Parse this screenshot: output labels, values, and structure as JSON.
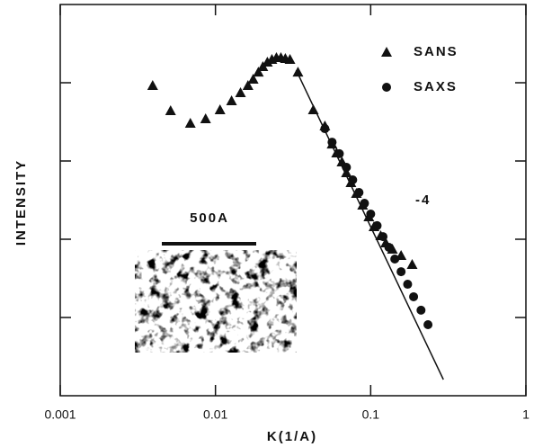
{
  "chart_data": {
    "type": "scatter",
    "x_label": "K(1/A)",
    "y_label": "INTENSITY",
    "log_x": true,
    "log_y": true,
    "xlim": [
      0.001,
      1
    ],
    "ylim": [
      1,
      100000
    ],
    "xticks": [
      0.001,
      0.01,
      0.1,
      1
    ],
    "yticks": [
      10,
      100,
      1000,
      10000
    ],
    "legend_position": "top-right",
    "series": [
      {
        "name": "SANS",
        "marker": "triangle",
        "color": "#111111",
        "x": [
          0.00394,
          0.00514,
          0.00689,
          0.00864,
          0.0107,
          0.0127,
          0.0145,
          0.0162,
          0.0175,
          0.0189,
          0.0202,
          0.0216,
          0.0231,
          0.0247,
          0.0264,
          0.0282,
          0.0302,
          0.034,
          0.0427,
          0.0507,
          0.0564,
          0.0603,
          0.0653,
          0.0698,
          0.0746,
          0.0809,
          0.0887,
          0.0973,
          0.105,
          0.116,
          0.125,
          0.138,
          0.157,
          0.185
        ],
        "values": [
          9240,
          4400,
          3040,
          3470,
          4520,
          5890,
          7480,
          9240,
          11100,
          13700,
          16100,
          18400,
          19900,
          21000,
          21000,
          20400,
          19900,
          13700,
          4520,
          2810,
          1650,
          1270,
          974,
          709,
          530,
          386,
          273,
          194,
          145,
          111,
          90,
          74.8,
          62.1,
          47.7
        ]
      },
      {
        "name": "SAXS",
        "marker": "circle",
        "color": "#111111",
        "x": [
          0.0507,
          0.0564,
          0.0628,
          0.0698,
          0.0766,
          0.0841,
          0.0912,
          0.1,
          0.11,
          0.12,
          0.131,
          0.143,
          0.157,
          0.173,
          0.189,
          0.211,
          0.234
        ],
        "values": [
          2590,
          1740,
          1240,
          831,
          574,
          396,
          288,
          210,
          149,
          108,
          78.8,
          55.9,
          38.5,
          26.6,
          18.4,
          12.4,
          8.09
        ]
      }
    ],
    "fit": {
      "x": [
        0.0331,
        0.294
      ],
      "y": [
        14500,
        1.61
      ],
      "color": "#111111"
    },
    "annotations": [
      "-4"
    ],
    "inset": {
      "scale_label": "500A"
    }
  }
}
